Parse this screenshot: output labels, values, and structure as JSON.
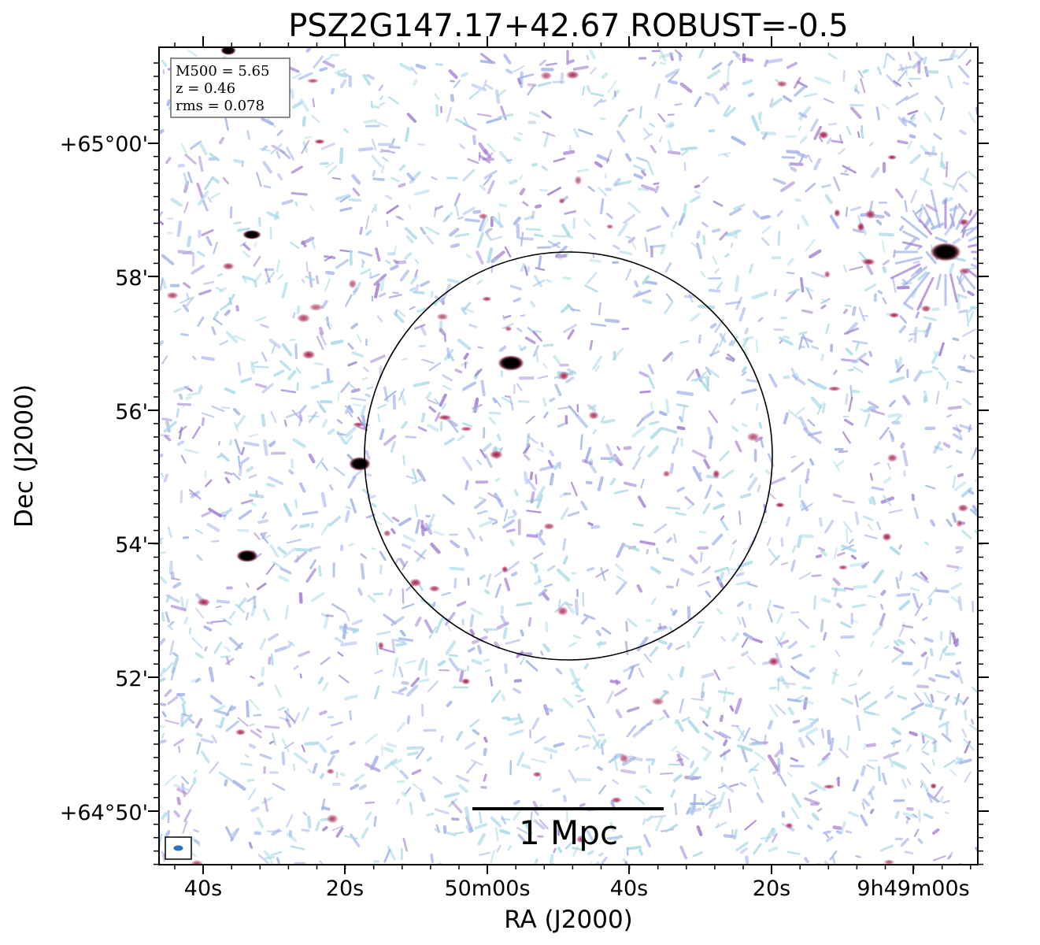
{
  "title": "PSZ2G147.17+42.67 ROBUST=-0.5",
  "axes": {
    "xlabel": "RA (J2000)",
    "ylabel": "Dec (J2000)",
    "xticks": [
      "40s",
      "20s",
      "50m00s",
      "40s",
      "20s",
      "9h49m00s"
    ],
    "yticks": [
      "+65°00'",
      "58'",
      "56'",
      "54'",
      "52'",
      "+64°50'"
    ]
  },
  "info": {
    "m500": "M500 = 5.65",
    "z": "z = 0.46",
    "rms": "rms = 0.078"
  },
  "scalebar": {
    "label": "1 Mpc"
  },
  "colors": {
    "noise_light": "#a9d9e8",
    "noise_blue": "#9fb0e8",
    "noise_purple": "#a07ad0",
    "noise_red": "#c0405a",
    "source_core": "#000000",
    "beam": "#2a74b8"
  }
}
